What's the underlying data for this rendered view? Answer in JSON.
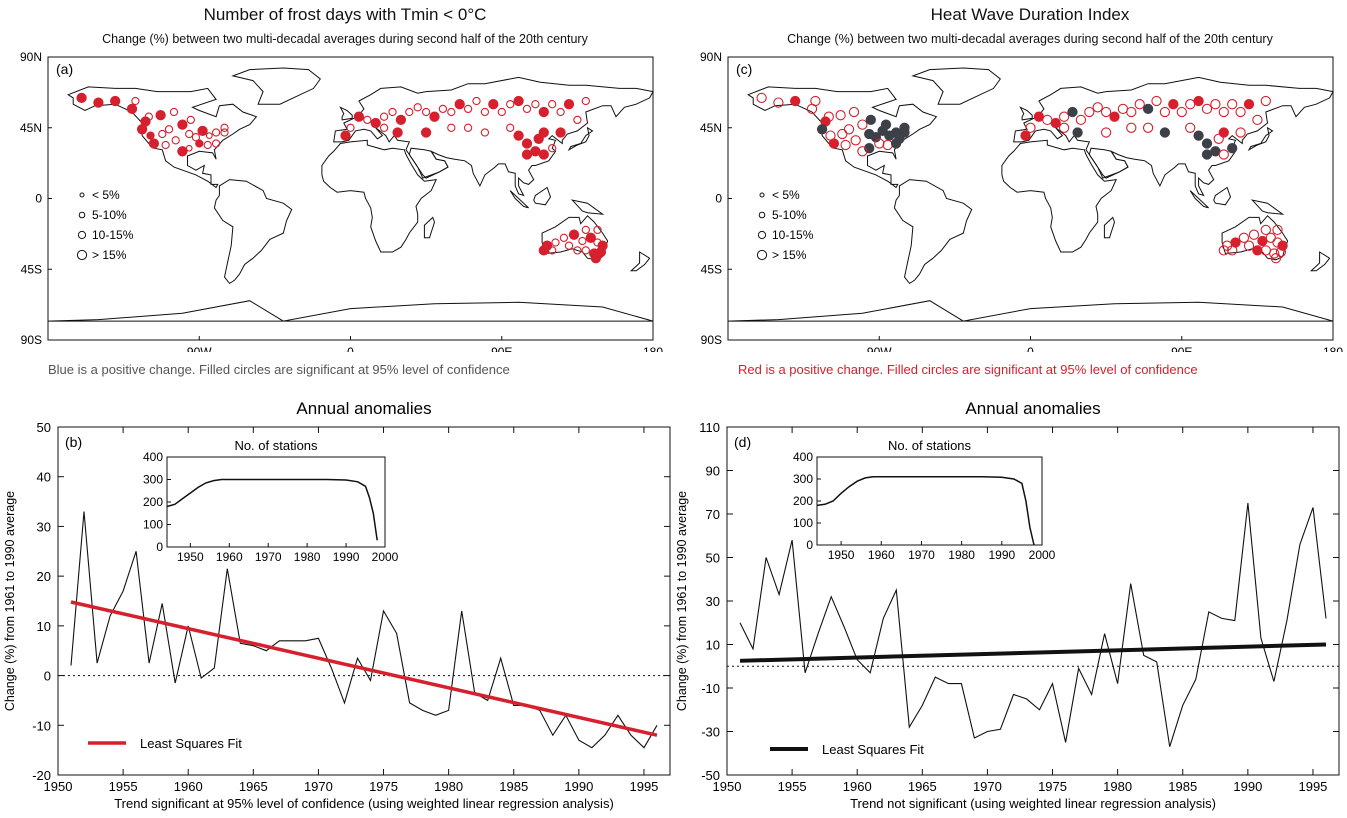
{
  "panel_a": {
    "title": "Number of frost days with Tmin < 0°C",
    "subtitle": "Change (%) between two multi-decadal averages during second half of the 20th century",
    "label": "(a)",
    "note": "Blue is a positive change. Filled circles are significant at 95% level of confidence",
    "lat_ticks": [
      "90N",
      "45N",
      "0",
      "45S",
      "90S"
    ],
    "lon_ticks": [
      "90W",
      "0",
      "90E",
      "180"
    ],
    "legend": [
      "< 5%",
      "5-10%",
      "10-15%",
      "> 15%"
    ]
  },
  "panel_c": {
    "title": "Heat Wave Duration Index",
    "subtitle": "Change (%) between two multi-decadal averages during second half of the 20th century",
    "label": "(c)",
    "note": "Red is a positive change. Filled circles are significant at 95% level of confidence",
    "lat_ticks": [
      "90N",
      "45N",
      "0",
      "45S",
      "90S"
    ],
    "lon_ticks": [
      "90W",
      "0",
      "90E",
      "180"
    ],
    "legend": [
      "< 5%",
      "5-10%",
      "10-15%",
      "> 15%"
    ]
  },
  "colors": {
    "red": "#d6202e",
    "grey": "#3d4048",
    "line": "#111111"
  },
  "chart_data": [
    {
      "id": "b",
      "type": "line",
      "title": "Annual anomalies",
      "label": "(b)",
      "ylabel": "Change (%) from 1961 to 1990 average",
      "xlabel": "Trend significant at 95% level of confidence (using weighted linear regression analysis)",
      "xlim": [
        1950,
        1997
      ],
      "ylim": [
        -20,
        50
      ],
      "xticks": [
        1950,
        1955,
        1960,
        1965,
        1970,
        1975,
        1980,
        1985,
        1990,
        1995
      ],
      "yticks": [
        -20,
        -10,
        0,
        10,
        20,
        30,
        40,
        50
      ],
      "x": [
        1951,
        1952,
        1953,
        1954,
        1955,
        1956,
        1957,
        1958,
        1959,
        1960,
        1961,
        1962,
        1963,
        1964,
        1965,
        1966,
        1967,
        1968,
        1969,
        1970,
        1971,
        1972,
        1973,
        1974,
        1975,
        1976,
        1977,
        1978,
        1979,
        1980,
        1981,
        1982,
        1983,
        1984,
        1985,
        1986,
        1987,
        1988,
        1989,
        1990,
        1991,
        1992,
        1993,
        1994,
        1995,
        1996
      ],
      "series": [
        {
          "values": [
            2,
            33,
            2.5,
            12,
            17,
            25,
            2.5,
            14.5,
            -1.5,
            10,
            -0.5,
            1.5,
            21.5,
            6.5,
            6,
            5,
            7,
            7,
            7,
            7.5,
            1.5,
            -5.5,
            3.5,
            -1,
            13,
            8.5,
            -5.5,
            -7,
            -8,
            -7,
            13,
            -3.5,
            -5,
            3.5,
            -6,
            -6,
            -7,
            -12,
            -8,
            -13,
            -14.5,
            -12,
            -8,
            -12,
            -14.5,
            -10
          ]
        }
      ],
      "fit": {
        "name": "Least Squares Fit",
        "x": [
          1951,
          1996
        ],
        "y": [
          14.8,
          -12
        ]
      },
      "inset": {
        "title": "No. of stations",
        "xlim": [
          1944,
          2000
        ],
        "ylim": [
          0,
          400
        ],
        "xticks": [
          1950,
          1960,
          1970,
          1980,
          1990,
          2000
        ],
        "yticks": [
          0,
          100,
          200,
          300,
          400
        ],
        "x": [
          1944,
          1946,
          1948,
          1950,
          1952,
          1954,
          1956,
          1958,
          1960,
          1965,
          1970,
          1975,
          1980,
          1985,
          1990,
          1993,
          1995,
          1996,
          1997,
          1998
        ],
        "y": [
          180,
          190,
          215,
          240,
          265,
          285,
          295,
          300,
          300,
          300,
          300,
          300,
          300,
          300,
          298,
          290,
          270,
          220,
          150,
          30
        ]
      }
    },
    {
      "id": "d",
      "type": "line",
      "title": "Annual anomalies",
      "label": "(d)",
      "ylabel": "Change (%) from 1961 to 1990 average",
      "xlabel": "Trend not significant (using weighted linear regression analysis)",
      "xlim": [
        1950,
        1997
      ],
      "ylim": [
        -50,
        110
      ],
      "xticks": [
        1950,
        1955,
        1960,
        1965,
        1970,
        1975,
        1980,
        1985,
        1990,
        1995
      ],
      "yticks": [
        -50,
        -30,
        -10,
        10,
        30,
        50,
        70,
        90,
        110
      ],
      "x": [
        1951,
        1952,
        1953,
        1954,
        1955,
        1956,
        1957,
        1958,
        1959,
        1960,
        1961,
        1962,
        1963,
        1964,
        1965,
        1966,
        1967,
        1968,
        1969,
        1970,
        1971,
        1972,
        1973,
        1974,
        1975,
        1976,
        1977,
        1978,
        1979,
        1980,
        1981,
        1982,
        1983,
        1984,
        1985,
        1986,
        1987,
        1988,
        1989,
        1990,
        1991,
        1992,
        1993,
        1994,
        1995,
        1996
      ],
      "series": [
        {
          "values": [
            20,
            8,
            50,
            33,
            58,
            -3,
            15,
            32,
            18,
            3,
            -3,
            22,
            35,
            -28,
            -18,
            -5,
            -8,
            -8,
            -33,
            -30,
            -29,
            -13,
            -15,
            -20,
            -8,
            -35,
            -1,
            -13,
            15,
            -8,
            38,
            5,
            2,
            -37,
            -18,
            -6,
            25,
            22,
            21,
            75,
            13,
            -7,
            21,
            56,
            73,
            22
          ]
        }
      ],
      "fit": {
        "name": "Least Squares Fit",
        "x": [
          1951,
          1996
        ],
        "y": [
          2.5,
          10
        ]
      },
      "inset": {
        "title": "No. of stations",
        "xlim": [
          1944,
          2000
        ],
        "ylim": [
          0,
          400
        ],
        "xticks": [
          1950,
          1960,
          1970,
          1980,
          1990,
          2000
        ],
        "yticks": [
          0,
          100,
          200,
          300,
          400
        ],
        "x": [
          1944,
          1946,
          1948,
          1950,
          1952,
          1954,
          1956,
          1958,
          1960,
          1965,
          1970,
          1975,
          1980,
          1985,
          1990,
          1993,
          1995,
          1996,
          1997,
          1998
        ],
        "y": [
          180,
          185,
          200,
          235,
          265,
          290,
          305,
          310,
          310,
          310,
          310,
          310,
          310,
          310,
          308,
          300,
          280,
          200,
          80,
          0
        ]
      }
    }
  ]
}
